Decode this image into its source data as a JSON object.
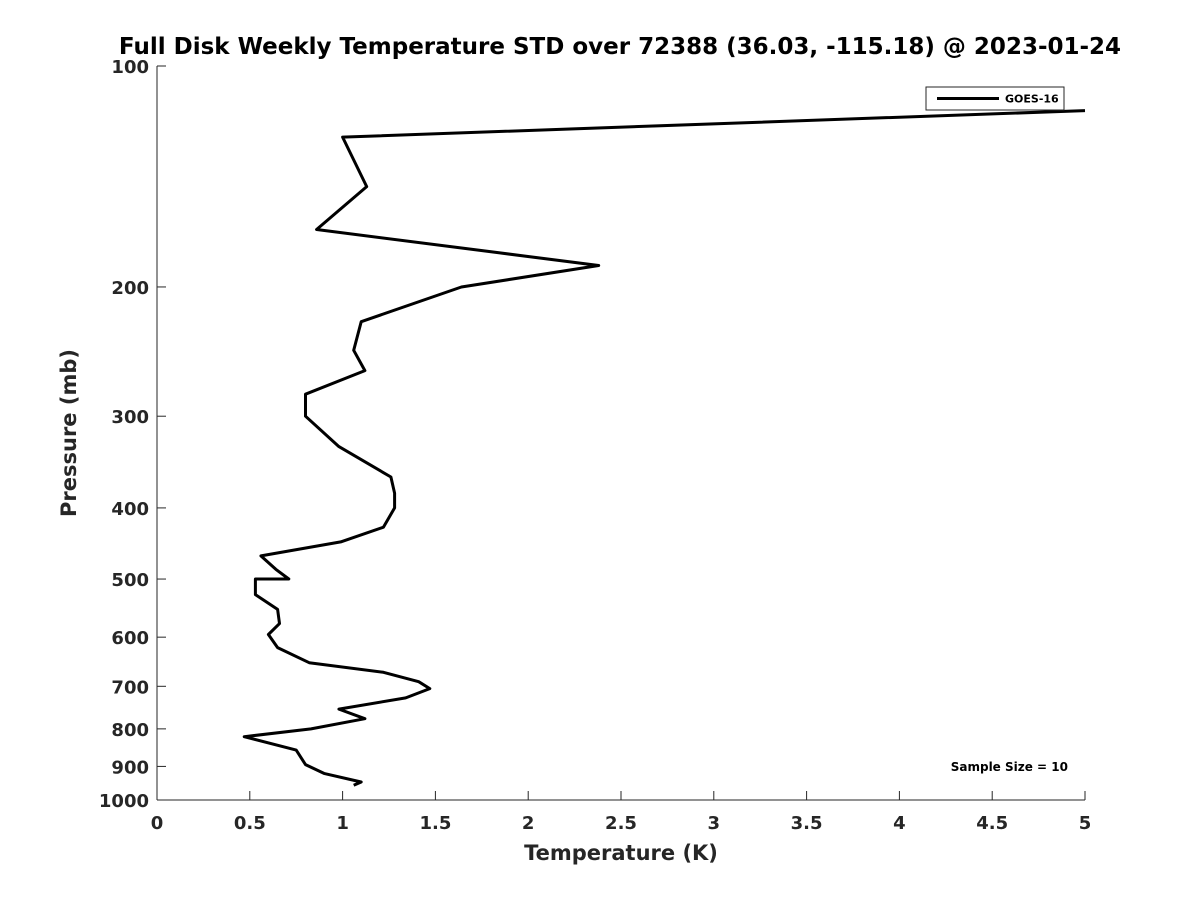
{
  "chart_data": {
    "type": "line",
    "title": "Full Disk Weekly Temperature STD over 72388 (36.03, -115.18) @ 2023-01-24",
    "xlabel": "Temperature (K)",
    "ylabel": "Pressure (mb)",
    "xlim": [
      0,
      5
    ],
    "ylim": [
      1000,
      100
    ],
    "y_scale": "log",
    "y_reversed": true,
    "x_ticks": [
      "0",
      "0.5",
      "1",
      "1.5",
      "2",
      "2.5",
      "3",
      "3.5",
      "4",
      "4.5",
      "5"
    ],
    "y_ticks": [
      "100",
      "200",
      "300",
      "400",
      "500",
      "600",
      "700",
      "800",
      "900",
      "1000"
    ],
    "grid": false,
    "legend_position": "top-right",
    "annotation": "Sample Size = 10",
    "series": [
      {
        "name": "GOES-16",
        "color": "#000000",
        "x": [
          5.0,
          1.0,
          1.13,
          0.86,
          2.38,
          1.64,
          1.1,
          1.06,
          1.12,
          0.8,
          0.8,
          0.98,
          1.26,
          1.28,
          1.28,
          1.22,
          0.99,
          0.56,
          0.64,
          0.71,
          0.53,
          0.53,
          0.65,
          0.66,
          0.6,
          0.65,
          0.82,
          1.22,
          1.41,
          1.47,
          1.34,
          0.98,
          1.12,
          0.83,
          0.47,
          0.75,
          0.8,
          0.9,
          1.1,
          1.06
        ],
        "y": [
          115,
          125,
          146,
          167,
          187,
          200,
          223,
          244,
          260,
          280,
          300,
          330,
          363,
          382,
          400,
          425,
          445,
          465,
          485,
          500,
          500,
          525,
          550,
          575,
          595,
          620,
          650,
          670,
          690,
          705,
          726,
          752,
          775,
          800,
          820,
          855,
          895,
          920,
          945,
          955
        ]
      }
    ]
  }
}
